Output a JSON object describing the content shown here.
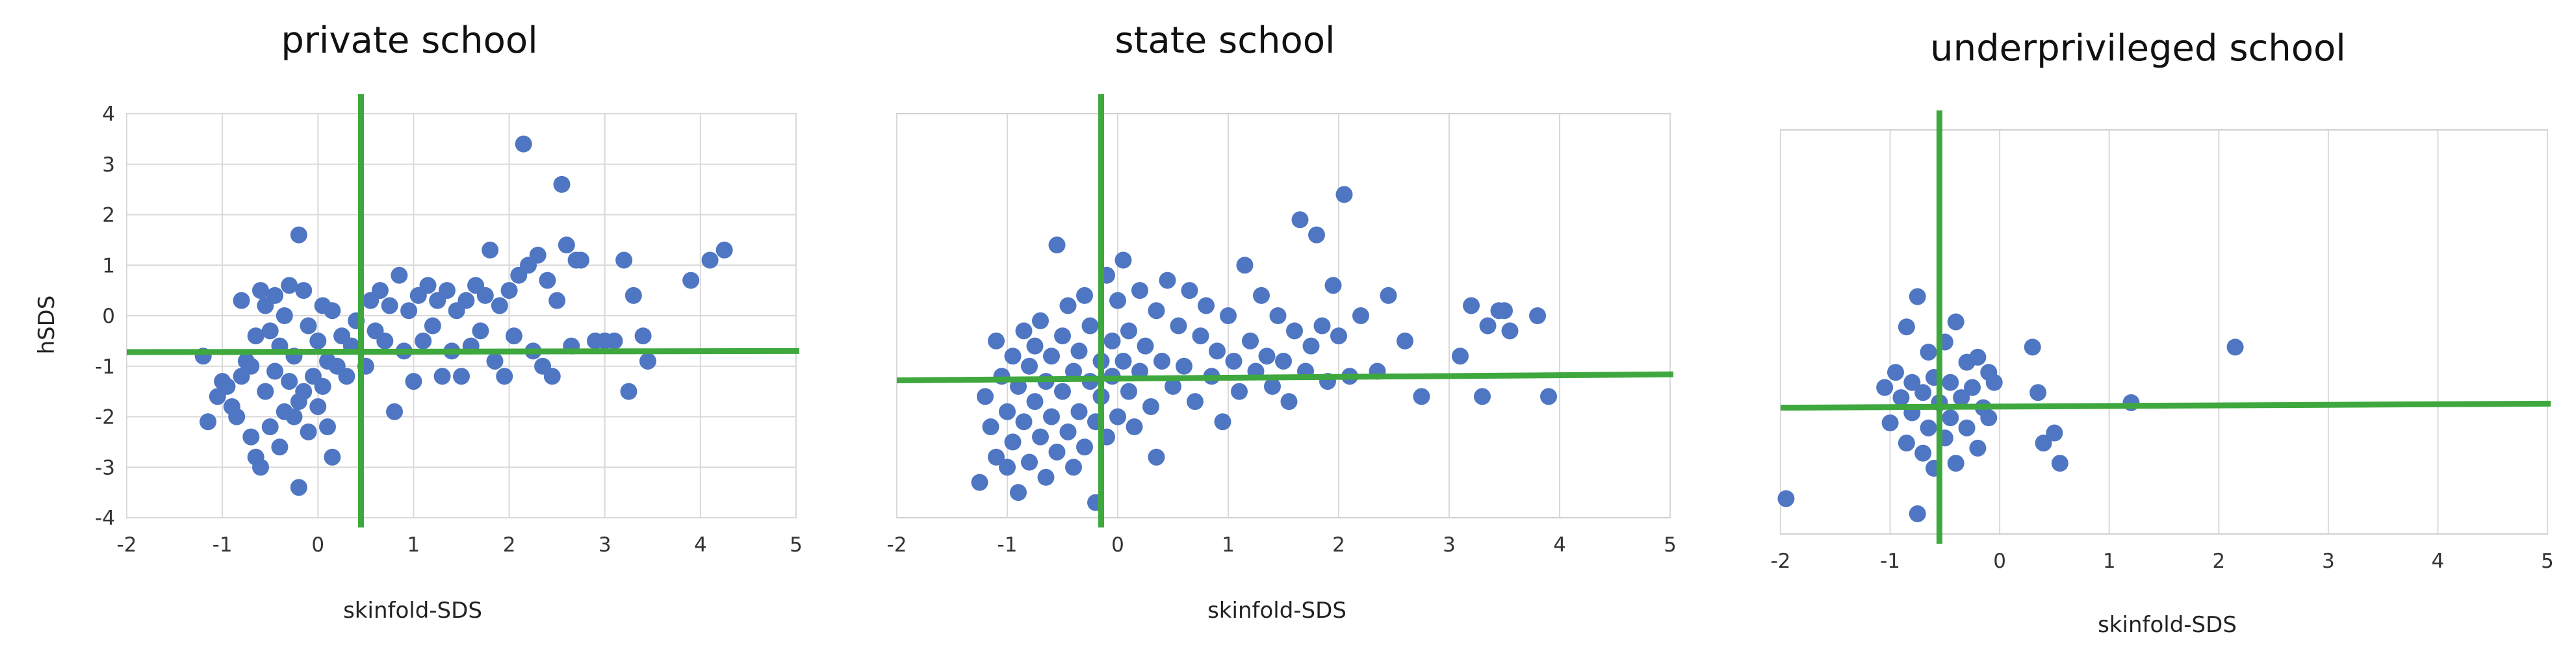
{
  "colors": {
    "point": "#4f76c2",
    "trend": "#3ea83e",
    "grid": "#d9d9d9",
    "frame": "#d0d0d0"
  },
  "chart_data": [
    {
      "type": "scatter",
      "title": "private school",
      "xlabel": "skinfold-SDS",
      "ylabel": "hSDS",
      "xlim": [
        -2,
        5
      ],
      "ylim": [
        -4,
        4
      ],
      "xticks": [
        "-2",
        "-1",
        "0",
        "1",
        "2",
        "3",
        "4",
        "5"
      ],
      "yticks": [
        "4",
        "3",
        "2",
        "1",
        "0",
        "-1",
        "-2",
        "-3",
        "-4"
      ],
      "grid": true,
      "reference_lines": {
        "vertical_x": 0.45,
        "horizontal_y": [
          -0.72,
          -0.7
        ]
      },
      "points": [
        [
          -1.2,
          -0.8
        ],
        [
          -1.15,
          -2.1
        ],
        [
          -1.05,
          -1.6
        ],
        [
          -1.0,
          -1.3
        ],
        [
          -0.95,
          -1.4
        ],
        [
          -0.9,
          -1.8
        ],
        [
          -0.85,
          -2.0
        ],
        [
          -0.8,
          0.3
        ],
        [
          -0.8,
          -1.2
        ],
        [
          -0.75,
          -0.9
        ],
        [
          -0.7,
          -2.4
        ],
        [
          -0.7,
          -1.0
        ],
        [
          -0.65,
          -0.4
        ],
        [
          -0.65,
          -2.8
        ],
        [
          -0.6,
          -3.0
        ],
        [
          -0.6,
          0.5
        ],
        [
          -0.55,
          0.2
        ],
        [
          -0.55,
          -1.5
        ],
        [
          -0.5,
          -0.3
        ],
        [
          -0.5,
          -2.2
        ],
        [
          -0.45,
          0.4
        ],
        [
          -0.45,
          -1.1
        ],
        [
          -0.4,
          -2.6
        ],
        [
          -0.4,
          -0.6
        ],
        [
          -0.35,
          0.0
        ],
        [
          -0.35,
          -1.9
        ],
        [
          -0.3,
          0.6
        ],
        [
          -0.3,
          -1.3
        ],
        [
          -0.25,
          -2.0
        ],
        [
          -0.25,
          -0.8
        ],
        [
          -0.2,
          1.6
        ],
        [
          -0.2,
          -3.4
        ],
        [
          -0.2,
          -1.7
        ],
        [
          -0.15,
          0.5
        ],
        [
          -0.15,
          -1.5
        ],
        [
          -0.1,
          -2.3
        ],
        [
          -0.1,
          -0.2
        ],
        [
          -0.05,
          -1.2
        ],
        [
          0.0,
          -0.5
        ],
        [
          0.0,
          -1.8
        ],
        [
          0.05,
          0.2
        ],
        [
          0.05,
          -1.4
        ],
        [
          0.1,
          -2.2
        ],
        [
          0.1,
          -0.9
        ],
        [
          0.15,
          -2.8
        ],
        [
          0.15,
          0.1
        ],
        [
          0.2,
          -1.0
        ],
        [
          0.25,
          -0.4
        ],
        [
          0.3,
          -1.2
        ],
        [
          0.35,
          -0.6
        ],
        [
          0.4,
          -0.1
        ],
        [
          0.5,
          -1.0
        ],
        [
          0.55,
          0.3
        ],
        [
          0.6,
          -0.3
        ],
        [
          0.65,
          0.5
        ],
        [
          0.7,
          -0.5
        ],
        [
          0.75,
          0.2
        ],
        [
          0.8,
          -1.9
        ],
        [
          0.85,
          0.8
        ],
        [
          0.9,
          -0.7
        ],
        [
          0.95,
          0.1
        ],
        [
          1.0,
          -1.3
        ],
        [
          1.05,
          0.4
        ],
        [
          1.1,
          -0.5
        ],
        [
          1.15,
          0.6
        ],
        [
          1.2,
          -0.2
        ],
        [
          1.25,
          0.3
        ],
        [
          1.3,
          -1.2
        ],
        [
          1.35,
          0.5
        ],
        [
          1.4,
          -0.7
        ],
        [
          1.45,
          0.1
        ],
        [
          1.5,
          -1.2
        ],
        [
          1.55,
          0.3
        ],
        [
          1.6,
          -0.6
        ],
        [
          1.65,
          0.6
        ],
        [
          1.7,
          -0.3
        ],
        [
          1.75,
          0.4
        ],
        [
          1.8,
          1.3
        ],
        [
          1.85,
          -0.9
        ],
        [
          1.9,
          0.2
        ],
        [
          1.95,
          -1.2
        ],
        [
          2.0,
          0.5
        ],
        [
          2.05,
          -0.4
        ],
        [
          2.1,
          0.8
        ],
        [
          2.15,
          3.4
        ],
        [
          2.2,
          1.0
        ],
        [
          2.25,
          -0.7
        ],
        [
          2.3,
          1.2
        ],
        [
          2.35,
          -1.0
        ],
        [
          2.4,
          0.7
        ],
        [
          2.45,
          -1.2
        ],
        [
          2.5,
          0.3
        ],
        [
          2.55,
          2.6
        ],
        [
          2.6,
          1.4
        ],
        [
          2.65,
          -0.6
        ],
        [
          2.7,
          1.1
        ],
        [
          2.75,
          1.1
        ],
        [
          2.9,
          -0.5
        ],
        [
          3.0,
          -0.5
        ],
        [
          3.1,
          -0.5
        ],
        [
          3.2,
          1.1
        ],
        [
          3.25,
          -1.5
        ],
        [
          3.3,
          0.4
        ],
        [
          3.4,
          -0.4
        ],
        [
          3.45,
          -0.9
        ],
        [
          3.9,
          0.7
        ],
        [
          4.1,
          1.1
        ],
        [
          4.25,
          1.3
        ]
      ]
    },
    {
      "type": "scatter",
      "title": "state school",
      "xlabel": "skinfold-SDS",
      "ylabel": "",
      "xlim": [
        -2,
        5
      ],
      "ylim": [
        -4,
        4
      ],
      "xticks": [
        "-2",
        "-1",
        "0",
        "1",
        "2",
        "3",
        "4",
        "5"
      ],
      "yticks": [],
      "grid": true,
      "reference_lines": {
        "vertical_x": -0.15,
        "horizontal_y": [
          -1.28,
          -1.16
        ]
      },
      "points": [
        [
          -1.25,
          -3.3
        ],
        [
          -1.2,
          -1.6
        ],
        [
          -1.15,
          -2.2
        ],
        [
          -1.1,
          -0.5
        ],
        [
          -1.1,
          -2.8
        ],
        [
          -1.05,
          -1.2
        ],
        [
          -1.0,
          -3.0
        ],
        [
          -1.0,
          -1.9
        ],
        [
          -0.95,
          -0.8
        ],
        [
          -0.95,
          -2.5
        ],
        [
          -0.9,
          -1.4
        ],
        [
          -0.9,
          -3.5
        ],
        [
          -0.85,
          -0.3
        ],
        [
          -0.85,
          -2.1
        ],
        [
          -0.8,
          -1.0
        ],
        [
          -0.8,
          -2.9
        ],
        [
          -0.75,
          -0.6
        ],
        [
          -0.75,
          -1.7
        ],
        [
          -0.7,
          -2.4
        ],
        [
          -0.7,
          -0.1
        ],
        [
          -0.65,
          -1.3
        ],
        [
          -0.65,
          -3.2
        ],
        [
          -0.6,
          -0.8
        ],
        [
          -0.6,
          -2.0
        ],
        [
          -0.55,
          1.4
        ],
        [
          -0.55,
          -2.7
        ],
        [
          -0.5,
          -0.4
        ],
        [
          -0.5,
          -1.5
        ],
        [
          -0.45,
          0.2
        ],
        [
          -0.45,
          -2.3
        ],
        [
          -0.4,
          -1.1
        ],
        [
          -0.4,
          -3.0
        ],
        [
          -0.35,
          -0.7
        ],
        [
          -0.35,
          -1.9
        ],
        [
          -0.3,
          0.4
        ],
        [
          -0.3,
          -2.6
        ],
        [
          -0.25,
          -1.3
        ],
        [
          -0.25,
          -0.2
        ],
        [
          -0.2,
          -2.1
        ],
        [
          -0.2,
          -3.7
        ],
        [
          -0.15,
          -0.9
        ],
        [
          -0.15,
          -1.6
        ],
        [
          -0.1,
          0.8
        ],
        [
          -0.1,
          -2.4
        ],
        [
          -0.05,
          -0.5
        ],
        [
          -0.05,
          -1.2
        ],
        [
          0.0,
          0.3
        ],
        [
          0.0,
          -2.0
        ],
        [
          0.05,
          1.1
        ],
        [
          0.05,
          -0.9
        ],
        [
          0.1,
          -1.5
        ],
        [
          0.1,
          -0.3
        ],
        [
          0.15,
          -2.2
        ],
        [
          0.2,
          0.5
        ],
        [
          0.2,
          -1.1
        ],
        [
          0.25,
          -0.6
        ],
        [
          0.3,
          -1.8
        ],
        [
          0.35,
          0.1
        ],
        [
          0.35,
          -2.8
        ],
        [
          0.4,
          -0.9
        ],
        [
          0.45,
          0.7
        ],
        [
          0.5,
          -1.4
        ],
        [
          0.55,
          -0.2
        ],
        [
          0.6,
          -1.0
        ],
        [
          0.65,
          0.5
        ],
        [
          0.7,
          -1.7
        ],
        [
          0.75,
          -0.4
        ],
        [
          0.8,
          0.2
        ],
        [
          0.85,
          -1.2
        ],
        [
          0.9,
          -0.7
        ],
        [
          0.95,
          -2.1
        ],
        [
          1.0,
          0.0
        ],
        [
          1.05,
          -0.9
        ],
        [
          1.1,
          -1.5
        ],
        [
          1.15,
          1.0
        ],
        [
          1.2,
          -0.5
        ],
        [
          1.25,
          -1.1
        ],
        [
          1.3,
          0.4
        ],
        [
          1.35,
          -0.8
        ],
        [
          1.4,
          -1.4
        ],
        [
          1.45,
          0.0
        ],
        [
          1.5,
          -0.9
        ],
        [
          1.55,
          -1.7
        ],
        [
          1.6,
          -0.3
        ],
        [
          1.65,
          1.9
        ],
        [
          1.7,
          -1.1
        ],
        [
          1.75,
          -0.6
        ],
        [
          1.8,
          1.6
        ],
        [
          1.85,
          -0.2
        ],
        [
          1.9,
          -1.3
        ],
        [
          1.95,
          0.6
        ],
        [
          2.0,
          -0.4
        ],
        [
          2.05,
          2.4
        ],
        [
          2.1,
          -1.2
        ],
        [
          2.2,
          0.0
        ],
        [
          2.35,
          -1.1
        ],
        [
          2.45,
          0.4
        ],
        [
          2.6,
          -0.5
        ],
        [
          2.75,
          -1.6
        ],
        [
          3.1,
          -0.8
        ],
        [
          3.2,
          0.2
        ],
        [
          3.3,
          -1.6
        ],
        [
          3.35,
          -0.2
        ],
        [
          3.45,
          0.1
        ],
        [
          3.5,
          0.1
        ],
        [
          3.55,
          -0.3
        ],
        [
          3.8,
          0.0
        ],
        [
          3.9,
          -1.6
        ]
      ]
    },
    {
      "type": "scatter",
      "title": "underprivileged school",
      "xlabel": "skinfold-SDS",
      "ylabel": "",
      "xlim": [
        -2,
        5
      ],
      "ylim": [
        -4,
        4
      ],
      "xticks": [
        "-2",
        "-1",
        "0",
        "1",
        "2",
        "3",
        "4",
        "5"
      ],
      "yticks": [],
      "grid": true,
      "reference_lines": {
        "vertical_x": -0.55,
        "horizontal_y": [
          -1.5,
          -1.42
        ]
      },
      "points": [
        [
          -1.95,
          -3.3
        ],
        [
          -1.05,
          -1.1
        ],
        [
          -1.0,
          -1.8
        ],
        [
          -0.95,
          -0.8
        ],
        [
          -0.9,
          -1.3
        ],
        [
          -0.85,
          0.1
        ],
        [
          -0.85,
          -2.2
        ],
        [
          -0.8,
          -1.0
        ],
        [
          -0.8,
          -1.6
        ],
        [
          -0.75,
          -3.6
        ],
        [
          -0.75,
          0.7
        ],
        [
          -0.7,
          -1.2
        ],
        [
          -0.7,
          -2.4
        ],
        [
          -0.65,
          -0.4
        ],
        [
          -0.65,
          -1.9
        ],
        [
          -0.6,
          -0.9
        ],
        [
          -0.6,
          -2.7
        ],
        [
          -0.55,
          -1.4
        ],
        [
          -0.5,
          -0.2
        ],
        [
          -0.5,
          -2.1
        ],
        [
          -0.45,
          -1.0
        ],
        [
          -0.45,
          -1.7
        ],
        [
          -0.4,
          0.2
        ],
        [
          -0.4,
          -2.6
        ],
        [
          -0.35,
          -1.3
        ],
        [
          -0.3,
          -0.6
        ],
        [
          -0.3,
          -1.9
        ],
        [
          -0.25,
          -1.1
        ],
        [
          -0.2,
          -0.5
        ],
        [
          -0.2,
          -2.3
        ],
        [
          -0.15,
          -1.5
        ],
        [
          -0.1,
          -0.8
        ],
        [
          -0.1,
          -1.7
        ],
        [
          -0.05,
          -1.0
        ],
        [
          0.3,
          -0.3
        ],
        [
          0.35,
          -1.2
        ],
        [
          0.4,
          -2.2
        ],
        [
          0.5,
          -2.0
        ],
        [
          0.55,
          -2.6
        ],
        [
          1.2,
          -1.4
        ],
        [
          2.15,
          -0.3
        ]
      ]
    }
  ]
}
